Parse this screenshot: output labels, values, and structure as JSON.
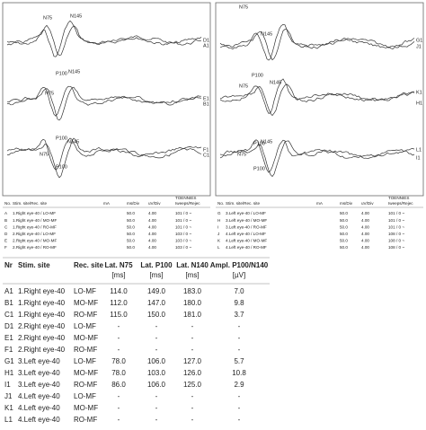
{
  "panels": [
    {
      "peak_labels": [
        "N75",
        "N145",
        "P100",
        "N75",
        "N145",
        "P100",
        "N145",
        "N75",
        "P100"
      ],
      "trace_labels": [
        "D1",
        "A1",
        "E1",
        "B1",
        "F1",
        "C1"
      ]
    },
    {
      "peak_labels": [
        "N75",
        "N145",
        "P100",
        "N75",
        "N145",
        "P100",
        "N145",
        "N75",
        "P100"
      ],
      "trace_labels": [
        "G1",
        "J1",
        "K1",
        "H1",
        "L1",
        "I1"
      ]
    }
  ],
  "channel_tables": [
    {
      "header": [
        "No.",
        "Stim. site/Rec. site",
        "mA",
        "ms/Div",
        "uV/Div",
        "TOENNIES",
        "Iweeps/Rejec"
      ],
      "rows": [
        [
          "A",
          "1.Right eye-40 / LO-MF",
          "50.0",
          "4.00",
          "101 / 0 ~"
        ],
        [
          "B",
          "1.Right eye-40 / MO-MF",
          "50.0",
          "4.00",
          "101 / 0 ~"
        ],
        [
          "C",
          "1.Right eye-40 / RO-MF",
          "50.0",
          "4.00",
          "101 / 0 ~"
        ],
        [
          "D",
          "2.Right eye-40 / LO-MF",
          "50.0",
          "4.00",
          "103 / 0 ~"
        ],
        [
          "E",
          "2.Right eye-40 / MO-MF",
          "50.0",
          "4.00",
          "103 / 0 ~"
        ],
        [
          "F",
          "2.Right eye-40 / RO-MF",
          "50.0",
          "4.00",
          "103 / 0 ~"
        ]
      ]
    },
    {
      "header": [
        "No.",
        "Stim. site/Rec. site",
        "mA",
        "ms/Div",
        "uV/Div",
        "TOENNIES",
        "Iweeps/Rejec"
      ],
      "rows": [
        [
          "G",
          "3.Left eye-40 / LO-MF",
          "50.0",
          "4.00",
          "101 / 0 ~"
        ],
        [
          "H",
          "3.Left eye-40 / MO-MF",
          "50.0",
          "4.00",
          "101 / 0 ~"
        ],
        [
          "I",
          "3.Left eye-40 / RO-MF",
          "50.0",
          "4.00",
          "101 / 0 ~"
        ],
        [
          "J",
          "4.Left eye-40 / LO-MF",
          "50.0",
          "4.00",
          "108 / 0 ~"
        ],
        [
          "K",
          "4.Left eye-40 / MO-MF",
          "50.0",
          "4.00",
          "108 / 0 ~"
        ],
        [
          "L",
          "4.Left eye-40 / RO-MF",
          "50.0",
          "4.00",
          "108 / 0 ~"
        ]
      ]
    }
  ],
  "results_table": {
    "header": [
      [
        "Nr"
      ],
      [
        "Stim. site"
      ],
      [
        "Rec. site"
      ],
      [
        "Lat. N75",
        "[ms]"
      ],
      [
        "Lat. P100",
        "[ms]"
      ],
      [
        "Lat. N140",
        "[ms]"
      ],
      [
        "Ampl. P100/N140",
        "[µV]"
      ]
    ],
    "rows": [
      [
        "A1",
        "1.Right eye-40",
        "LO-MF",
        "114.0",
        "149.0",
        "183.0",
        "7.0"
      ],
      [
        "B1",
        "1.Right eye-40",
        "MO-MF",
        "112.0",
        "147.0",
        "180.0",
        "9.8"
      ],
      [
        "C1",
        "1.Right eye-40",
        "RO-MF",
        "115.0",
        "150.0",
        "181.0",
        "3.7"
      ],
      [
        "D1",
        "2.Right eye-40",
        "LO-MF",
        "-",
        "-",
        "-",
        "-"
      ],
      [
        "E1",
        "2.Right eye-40",
        "MO-MF",
        "-",
        "-",
        "-",
        "-"
      ],
      [
        "F1",
        "2.Right eye-40",
        "RO-MF",
        "-",
        "-",
        "-",
        "-"
      ],
      [
        "G1",
        "3.Left eye-40",
        "LO-MF",
        "78.0",
        "106.0",
        "127.0",
        "5.7"
      ],
      [
        "H1",
        "3.Left eye-40",
        "MO-MF",
        "78.0",
        "103.0",
        "126.0",
        "10.8"
      ],
      [
        "I1",
        "3.Left eye-40",
        "RO-MF",
        "86.0",
        "106.0",
        "125.0",
        "2.9"
      ],
      [
        "J1",
        "4.Left eye-40",
        "LO-MF",
        "-",
        "-",
        "-",
        "-"
      ],
      [
        "K1",
        "4.Left eye-40",
        "MO-MF",
        "-",
        "-",
        "-",
        "-"
      ],
      [
        "L1",
        "4.Left eye-40",
        "RO-MF",
        "-",
        "-",
        "-",
        "-"
      ]
    ]
  }
}
